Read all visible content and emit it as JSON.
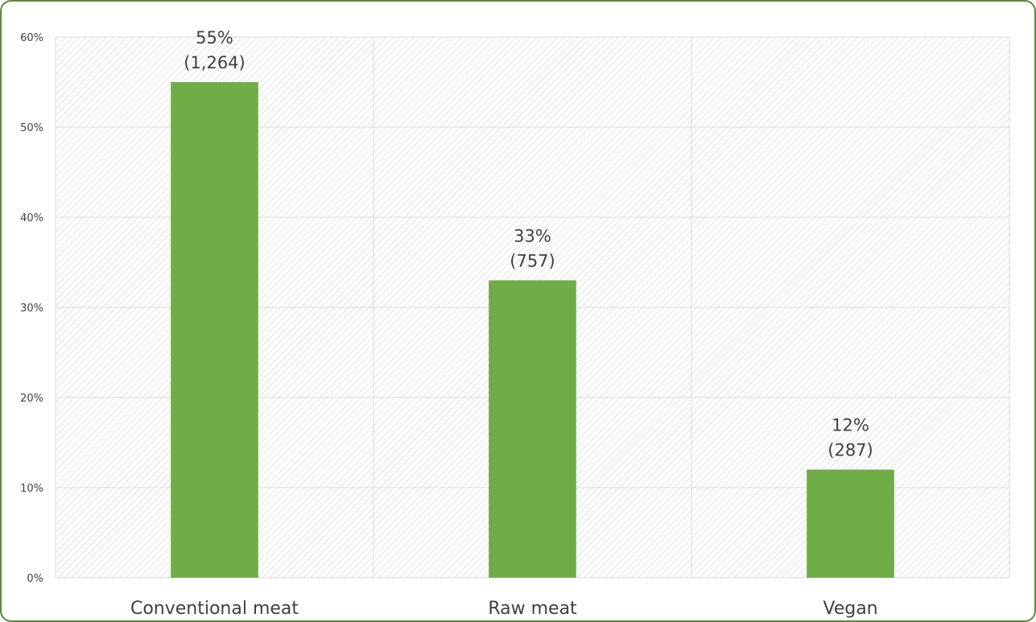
{
  "chart_data": {
    "type": "bar",
    "title": "",
    "xlabel": "",
    "ylabel": "",
    "categories": [
      "Conventional meat",
      "Raw meat",
      "Vegan"
    ],
    "values": [
      55,
      33,
      12
    ],
    "counts": [
      "1,264",
      "757",
      "287"
    ],
    "percent_labels": [
      "55%",
      "33%",
      "12%"
    ],
    "count_labels": [
      "(1,264)",
      "(757)",
      "(287)"
    ],
    "ylim": [
      0,
      60
    ],
    "yticks": [
      0,
      10,
      20,
      30,
      40,
      50,
      60
    ],
    "ytick_labels": [
      "0%",
      "10%",
      "20%",
      "30%",
      "40%",
      "50%",
      "60%"
    ],
    "grid": true,
    "legend": "none",
    "bar_color": "#70ad47",
    "frame_color": "#5a8a3a"
  }
}
